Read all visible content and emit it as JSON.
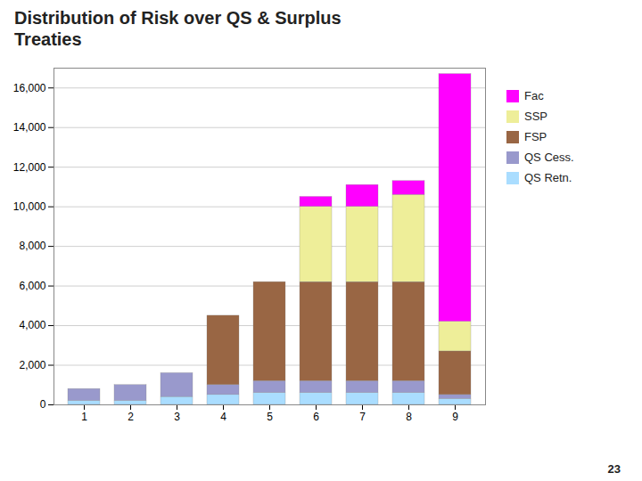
{
  "chart_data": {
    "type": "bar",
    "title": "Distribution of Risk over QS & Surplus\nTreaties",
    "categories": [
      "1",
      "2",
      "3",
      "4",
      "5",
      "6",
      "7",
      "8",
      "9"
    ],
    "series": [
      {
        "name": "QS Retn.",
        "color": "#aaddff",
        "values": [
          200,
          200,
          400,
          500,
          600,
          600,
          600,
          600,
          300
        ]
      },
      {
        "name": "QS Cess.",
        "color": "#9999cc",
        "values": [
          600,
          800,
          1200,
          500,
          600,
          600,
          600,
          600,
          200
        ]
      },
      {
        "name": "FSP",
        "color": "#996644",
        "values": [
          0,
          0,
          0,
          3500,
          5000,
          5000,
          5000,
          5000,
          2200
        ]
      },
      {
        "name": "SSP",
        "color": "#eeee99",
        "values": [
          0,
          0,
          0,
          0,
          0,
          3800,
          3800,
          4400,
          1500
        ]
      },
      {
        "name": "Fac",
        "color": "#ff00ff",
        "values": [
          0,
          0,
          0,
          0,
          0,
          500,
          1100,
          700,
          12500
        ]
      }
    ],
    "stacked": true,
    "ylim": [
      0,
      17000
    ],
    "yticks": [
      0,
      {
        "value": 2000,
        "label": "2,000"
      },
      {
        "value": 4000,
        "label": "4,000"
      },
      {
        "value": 6000,
        "label": "6,000"
      },
      {
        "value": 8000,
        "label": "8,000"
      },
      {
        "value": 10000,
        "label": "10,000"
      },
      {
        "value": 12000,
        "label": "12,000"
      },
      {
        "value": 14000,
        "label": "14,000"
      },
      {
        "value": 16000,
        "label": "16,000"
      }
    ],
    "grid": true,
    "legend": "right",
    "annotations": [
      "23"
    ]
  }
}
